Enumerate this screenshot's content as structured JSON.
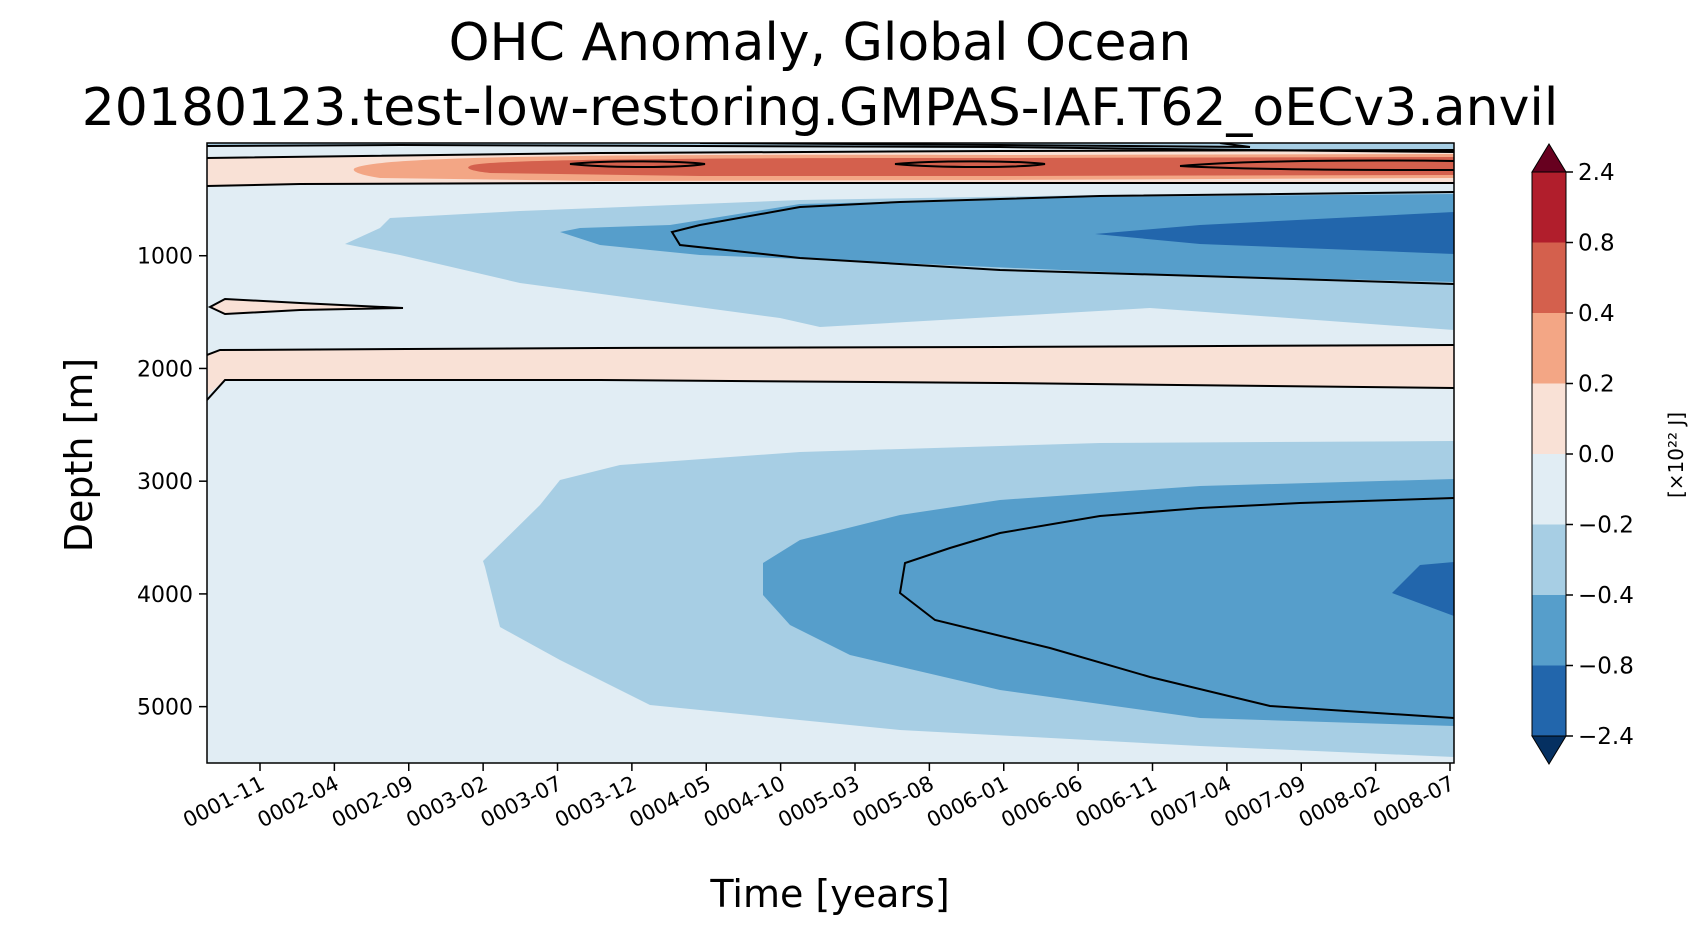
{
  "chart_data": {
    "type": "heatmap",
    "title": "OHC Anomaly, Global Ocean",
    "subtitle": "20180123.test-low-restoring.GMPAS-IAF.T62_oECv3.anvil",
    "xlabel": "Time [years]",
    "ylabel": "Depth [m]",
    "x_tick_labels": [
      "0001-11",
      "0002-04",
      "0002-09",
      "0003-02",
      "0003-07",
      "0003-12",
      "0004-05",
      "0004-10",
      "0005-03",
      "0005-08",
      "0006-01",
      "0006-06",
      "0006-11",
      "0007-04",
      "0007-09",
      "0008-02",
      "0008-07"
    ],
    "y_ticks": [
      1000,
      2000,
      3000,
      4000,
      5000
    ],
    "y_tick_labels": [
      "1000",
      "2000",
      "3000",
      "4000",
      "5000"
    ],
    "ylim": [
      5500,
      0
    ],
    "colorbar": {
      "label": "[×10²² J]",
      "levels": [
        -2.4,
        -0.8,
        -0.4,
        -0.2,
        0.0,
        0.2,
        0.4,
        0.8,
        2.4
      ],
      "tick_labels": [
        "−2.4",
        "−0.8",
        "−0.4",
        "−0.2",
        "0.0",
        "0.2",
        "0.4",
        "0.8",
        "2.4"
      ],
      "colors": [
        "#2266ac",
        "#569ecb",
        "#a7cee4",
        "#e1edf4",
        "#f9e1d6",
        "#f3a685",
        "#d4604d",
        "#b11e2c"
      ],
      "extend_low_color": "#053061",
      "extend_high_color": "#67001f"
    }
  }
}
